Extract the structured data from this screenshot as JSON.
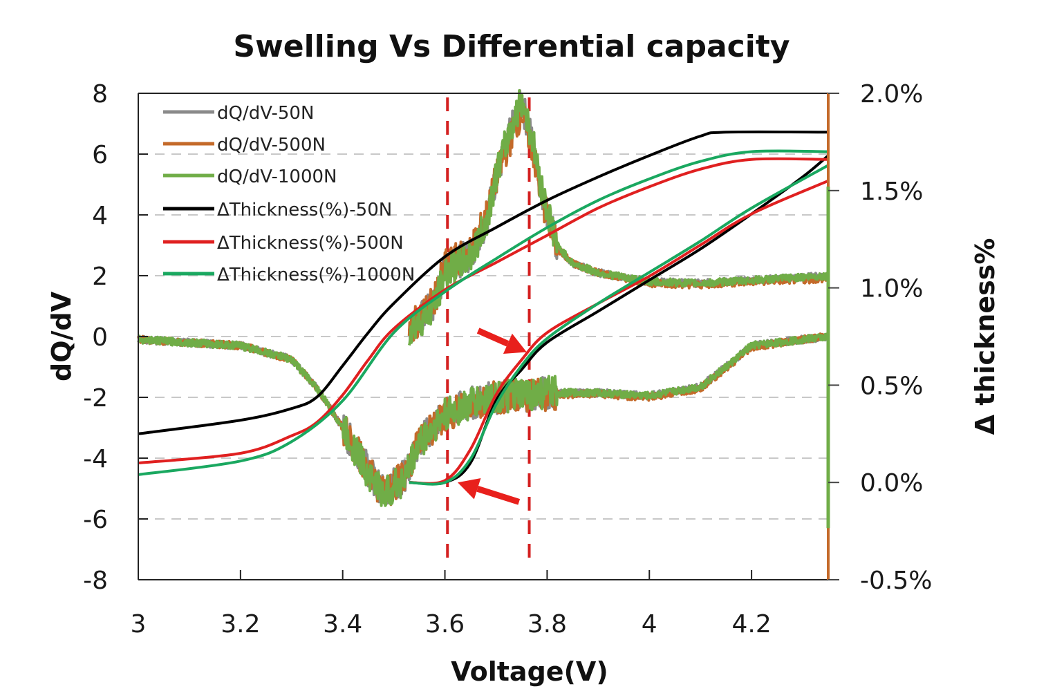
{
  "chart_data": {
    "type": "line",
    "title": "Swelling Vs Differential capacity",
    "xlabel": "Voltage(V)",
    "ylabel": "dQ/dV",
    "y2label": "Δ thickness%",
    "xlim": [
      3,
      4.35
    ],
    "ylim": [
      -8,
      8
    ],
    "y2lim": [
      -0.5,
      2.0
    ],
    "x_ticks": [
      3,
      3.2,
      3.4,
      3.6,
      3.8,
      4,
      4.2
    ],
    "x_tick_labels": [
      "3",
      "3.2",
      "3.4",
      "3.6",
      "3.8",
      "4",
      "4.2"
    ],
    "y_ticks": [
      8,
      6,
      4,
      2,
      0,
      -2,
      -4,
      -6,
      -8
    ],
    "y_tick_labels": [
      "8",
      "6",
      "4",
      "2",
      "0",
      "-2",
      "-4",
      "-6",
      "-8"
    ],
    "y2_ticks": [
      2.0,
      1.5,
      1.0,
      0.5,
      0.0,
      -0.5
    ],
    "y2_tick_labels": [
      "2.0%",
      "1.5%",
      "1.0%",
      "0.5%",
      "0.0%",
      "-0.5%"
    ],
    "grid": "horizontal-dashed",
    "legend_position": "top-left",
    "series": [
      {
        "name": "dQ/dV-50N",
        "axis": "left",
        "color": "#8a8a8a",
        "noisy": true,
        "segments": [
          {
            "x": [
              3.53,
              3.58,
              3.6,
              3.65,
              3.68,
              3.7,
              3.73,
              3.75,
              3.77,
              3.79,
              3.82,
              3.85,
              3.9,
              4.0,
              4.1,
              4.2,
              4.35
            ],
            "y": [
              0.2,
              1.07,
              2.2,
              2.7,
              3.8,
              5.2,
              6.8,
              7.7,
              6.5,
              4.7,
              2.9,
              2.4,
              2.1,
              1.8,
              1.75,
              1.85,
              2.0
            ]
          },
          {
            "x": [
              3.0,
              3.2,
              3.3,
              3.35,
              3.4,
              3.45,
              3.48,
              3.52,
              3.55,
              3.6,
              3.65,
              3.7,
              3.8,
              3.9,
              4.0,
              4.1,
              4.15,
              4.2,
              4.3,
              4.35
            ],
            "y": [
              -0.1,
              -0.3,
              -0.75,
              -1.7,
              -3.0,
              -4.4,
              -5.1,
              -4.6,
              -3.5,
              -2.6,
              -2.2,
              -2.0,
              -1.85,
              -1.85,
              -1.95,
              -1.65,
              -1.0,
              -0.3,
              -0.1,
              0.0
            ]
          }
        ]
      },
      {
        "name": "dQ/dV-500N",
        "axis": "left",
        "color": "#c46a2a",
        "noisy": true,
        "segments": [
          {
            "x": [
              3.53,
              3.58,
              3.6,
              3.65,
              3.68,
              3.7,
              3.73,
              3.75,
              3.77,
              3.79,
              3.82,
              3.85,
              3.9,
              4.0,
              4.1,
              4.2,
              4.35
            ],
            "y": [
              0.2,
              1.2,
              2.3,
              2.8,
              3.9,
              5.2,
              6.6,
              7.4,
              6.3,
              4.5,
              2.9,
              2.4,
              2.1,
              1.75,
              1.7,
              1.8,
              1.9
            ]
          },
          {
            "x": [
              3.0,
              3.2,
              3.3,
              3.35,
              3.4,
              3.45,
              3.48,
              3.52,
              3.55,
              3.6,
              3.65,
              3.7,
              3.8,
              3.9,
              4.0,
              4.1,
              4.15,
              4.2,
              4.3,
              4.35
            ],
            "y": [
              -0.1,
              -0.3,
              -0.75,
              -1.7,
              -3.0,
              -4.4,
              -5.2,
              -4.6,
              -3.5,
              -2.6,
              -2.2,
              -2.0,
              -1.9,
              -1.9,
              -2.0,
              -1.7,
              -1.05,
              -0.35,
              -0.1,
              0.0
            ]
          }
        ]
      },
      {
        "name": "dQ/dV-1000N",
        "axis": "left",
        "color": "#70ad47",
        "noisy": true,
        "segments": [
          {
            "x": [
              3.53,
              3.58,
              3.6,
              3.65,
              3.68,
              3.7,
              3.73,
              3.75,
              3.77,
              3.79,
              3.82,
              3.85,
              3.9,
              4.0,
              4.1,
              4.2,
              4.35
            ],
            "y": [
              0.2,
              1.0,
              2.1,
              2.6,
              3.7,
              5.3,
              6.9,
              7.8,
              6.6,
              4.8,
              3.0,
              2.4,
              2.1,
              1.8,
              1.75,
              1.85,
              2.0
            ]
          },
          {
            "x": [
              3.0,
              3.2,
              3.3,
              3.35,
              3.4,
              3.45,
              3.48,
              3.52,
              3.55,
              3.6,
              3.65,
              3.7,
              3.8,
              3.9,
              4.0,
              4.1,
              4.15,
              4.2,
              4.3,
              4.35
            ],
            "y": [
              -0.1,
              -0.3,
              -0.75,
              -1.7,
              -3.0,
              -4.5,
              -5.2,
              -4.7,
              -3.5,
              -2.6,
              -2.2,
              -2.0,
              -1.85,
              -1.85,
              -1.95,
              -1.65,
              -1.0,
              -0.3,
              -0.1,
              0.0
            ]
          }
        ]
      },
      {
        "name": "ΔThickness(%)-50N",
        "axis": "right",
        "color": "#000000",
        "noisy": false,
        "segments": [
          {
            "x": [
              3.0,
              3.2,
              3.3,
              3.35,
              3.4,
              3.45,
              3.5,
              3.6,
              3.7,
              3.8,
              3.9,
              4.0,
              4.1,
              4.15,
              4.35
            ],
            "y": [
              0.25,
              0.32,
              0.38,
              0.44,
              0.6,
              0.77,
              0.92,
              1.16,
              1.31,
              1.45,
              1.57,
              1.68,
              1.78,
              1.8,
              1.8
            ]
          },
          {
            "x": [
              3.53,
              3.6,
              3.65,
              3.7,
              3.75,
              3.8,
              3.9,
              4.0,
              4.1,
              4.2,
              4.3,
              4.35
            ],
            "y": [
              0.0,
              0.0,
              0.1,
              0.42,
              0.58,
              0.72,
              0.88,
              1.04,
              1.2,
              1.38,
              1.57,
              1.68
            ]
          }
        ]
      },
      {
        "name": "ΔThickness(%)-500N",
        "axis": "right",
        "color": "#e02020",
        "noisy": false,
        "segments": [
          {
            "x": [
              3.0,
              3.2,
              3.3,
              3.35,
              3.4,
              3.45,
              3.5,
              3.6,
              3.7,
              3.8,
              3.9,
              4.0,
              4.1,
              4.2,
              4.35
            ],
            "y": [
              0.1,
              0.15,
              0.24,
              0.31,
              0.45,
              0.63,
              0.79,
              0.99,
              1.13,
              1.27,
              1.41,
              1.52,
              1.61,
              1.66,
              1.66
            ]
          },
          {
            "x": [
              3.53,
              3.6,
              3.65,
              3.7,
              3.75,
              3.8,
              3.9,
              4.0,
              4.1,
              4.2,
              4.35
            ],
            "y": [
              0.0,
              0.01,
              0.17,
              0.45,
              0.63,
              0.77,
              0.92,
              1.06,
              1.22,
              1.38,
              1.55
            ]
          }
        ]
      },
      {
        "name": "ΔThickness(%)-1000N",
        "axis": "right",
        "color": "#1aa860",
        "noisy": false,
        "segments": [
          {
            "x": [
              3.0,
              3.2,
              3.3,
              3.4,
              3.5,
              3.6,
              3.7,
              3.8,
              3.9,
              4.0,
              4.1,
              4.2,
              4.35
            ],
            "y": [
              0.04,
              0.11,
              0.21,
              0.42,
              0.77,
              0.98,
              1.15,
              1.31,
              1.45,
              1.56,
              1.65,
              1.7,
              1.7
            ]
          },
          {
            "x": [
              3.53,
              3.6,
              3.65,
              3.7,
              3.75,
              3.8,
              3.9,
              4.0,
              4.1,
              4.2,
              4.35
            ],
            "y": [
              0.0,
              0.0,
              0.12,
              0.4,
              0.6,
              0.74,
              0.92,
              1.08,
              1.24,
              1.41,
              1.63
            ]
          }
        ]
      }
    ],
    "annotations": {
      "vertical_dashed_lines": [
        {
          "x": 3.605,
          "color": "#d42020"
        },
        {
          "x": 3.765,
          "color": "#d42020"
        }
      ],
      "arrows": [
        {
          "from": [
            3.665,
            0.78
          ],
          "to": [
            3.76,
            0.67
          ],
          "axis": "right",
          "color": "#e8201c"
        },
        {
          "from": [
            3.745,
            -0.1
          ],
          "to": [
            3.625,
            0.0
          ],
          "axis": "right",
          "color": "#e8201c"
        }
      ]
    }
  }
}
